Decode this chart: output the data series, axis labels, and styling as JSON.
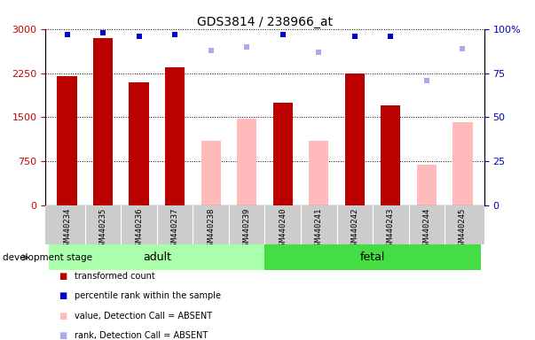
{
  "title": "GDS3814 / 238966_at",
  "samples": [
    "GSM440234",
    "GSM440235",
    "GSM440236",
    "GSM440237",
    "GSM440238",
    "GSM440239",
    "GSM440240",
    "GSM440241",
    "GSM440242",
    "GSM440243",
    "GSM440244",
    "GSM440245"
  ],
  "values": [
    2200,
    2850,
    2100,
    2350,
    1100,
    1480,
    1750,
    1100,
    2250,
    1700,
    700,
    1420
  ],
  "detection": [
    "P",
    "P",
    "P",
    "P",
    "A",
    "A",
    "P",
    "A",
    "P",
    "P",
    "A",
    "A"
  ],
  "ranks": [
    97,
    98,
    96,
    97,
    88,
    90,
    97,
    87,
    96,
    96,
    71,
    89
  ],
  "groups": [
    {
      "label": "adult",
      "start": 0,
      "end": 5,
      "color": "#aaffaa"
    },
    {
      "label": "fetal",
      "start": 6,
      "end": 11,
      "color": "#44dd44"
    }
  ],
  "ylim_left": [
    0,
    3000
  ],
  "ylim_right": [
    0,
    100
  ],
  "yticks_left": [
    0,
    750,
    1500,
    2250,
    3000
  ],
  "ytick_labels_left": [
    "0",
    "750",
    "1500",
    "2250",
    "3000"
  ],
  "yticks_right": [
    0,
    25,
    50,
    75,
    100
  ],
  "ytick_labels_right": [
    "0",
    "25",
    "50",
    "75",
    "100%"
  ],
  "color_present_bar": "#bb0000",
  "color_absent_bar": "#ffbbbb",
  "color_present_rank": "#0000cc",
  "color_absent_rank": "#aaaaee",
  "bar_width": 0.55,
  "legend_labels": [
    "transformed count",
    "percentile rank within the sample",
    "value, Detection Call = ABSENT",
    "rank, Detection Call = ABSENT"
  ],
  "legend_colors": [
    "#bb0000",
    "#0000cc",
    "#ffbbbb",
    "#aaaaee"
  ],
  "dev_stage_label": "development stage",
  "title_fontsize": 10,
  "axis_color_left": "#cc0000",
  "axis_color_right": "#0000cc",
  "background_color": "#ffffff",
  "tick_area_color": "#cccccc",
  "grid_color": "black",
  "grid_linestyle": ":",
  "grid_linewidth": 0.7,
  "rank_marker_size": 5
}
